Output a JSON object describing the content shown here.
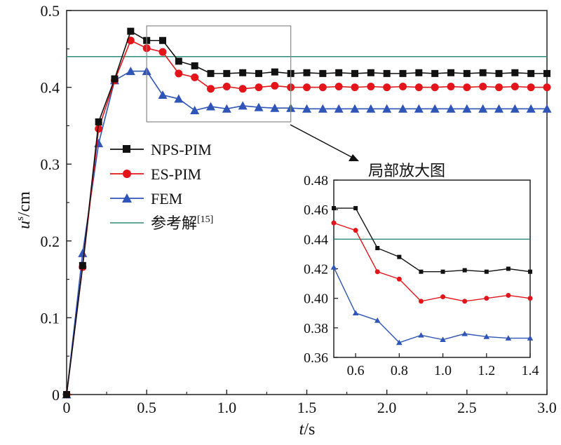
{
  "chart_data": {
    "type": "line",
    "xlabel": "t/s",
    "xlabel_parts": [
      "t",
      "/s"
    ],
    "ylabel": "us/cm",
    "ylabel_parts": [
      "u",
      "s",
      "/cm"
    ],
    "xlim": [
      0,
      3.0
    ],
    "ylim": [
      0,
      0.5
    ],
    "x_ticks": [
      "0",
      "0.5",
      "1.0",
      "1.5",
      "2.0",
      "2.5",
      "3.0"
    ],
    "y_ticks": [
      "0",
      "0.1",
      "0.2",
      "0.3",
      "0.4",
      "0.5"
    ],
    "legend_placement": "center-left",
    "colors": {
      "NPS-PIM": "#111111",
      "ES-PIM": "#e3151a",
      "FEM": "#2f55b8",
      "ref": "#2e8b7a"
    },
    "x": [
      0,
      0.1,
      0.2,
      0.3,
      0.4,
      0.5,
      0.6,
      0.7,
      0.8,
      0.9,
      1.0,
      1.1,
      1.2,
      1.3,
      1.4,
      1.5,
      1.6,
      1.7,
      1.8,
      1.9,
      2.0,
      2.1,
      2.2,
      2.3,
      2.4,
      2.5,
      2.6,
      2.7,
      2.8,
      2.9,
      3.0
    ],
    "series": [
      {
        "name": "NPS-PIM",
        "marker": "square",
        "values": [
          0,
          0.168,
          0.355,
          0.411,
          0.473,
          0.461,
          0.461,
          0.434,
          0.428,
          0.418,
          0.418,
          0.419,
          0.418,
          0.42,
          0.418,
          0.419,
          0.418,
          0.419,
          0.418,
          0.419,
          0.418,
          0.418,
          0.419,
          0.418,
          0.419,
          0.418,
          0.419,
          0.418,
          0.419,
          0.418,
          0.418
        ]
      },
      {
        "name": "ES-PIM",
        "marker": "circle",
        "values": [
          0,
          0.166,
          0.346,
          0.409,
          0.461,
          0.451,
          0.446,
          0.418,
          0.413,
          0.398,
          0.401,
          0.398,
          0.4,
          0.402,
          0.4,
          0.4,
          0.4,
          0.401,
          0.4,
          0.401,
          0.4,
          0.401,
          0.4,
          0.4,
          0.401,
          0.4,
          0.401,
          0.4,
          0.401,
          0.4,
          0.4
        ]
      },
      {
        "name": "FEM",
        "marker": "triangle",
        "values": [
          0,
          0.184,
          0.327,
          0.409,
          0.421,
          0.421,
          0.39,
          0.385,
          0.37,
          0.375,
          0.372,
          0.376,
          0.374,
          0.373,
          0.373,
          0.372,
          0.372,
          0.372,
          0.372,
          0.372,
          0.372,
          0.372,
          0.372,
          0.372,
          0.372,
          0.372,
          0.372,
          0.372,
          0.372,
          0.372,
          0.372
        ]
      }
    ],
    "reference": {
      "name": "参考解",
      "superscript": "[15]",
      "value": 0.44
    },
    "zoom_box": {
      "xlim": [
        0.5,
        1.4
      ],
      "ylim": [
        0.355,
        0.48
      ]
    },
    "inset": {
      "title": "局部放大图",
      "xlim": [
        0.5,
        1.4
      ],
      "ylim": [
        0.36,
        0.48
      ],
      "x_ticks": [
        "0.6",
        "0.8",
        "1.0",
        "1.2",
        "1.4"
      ],
      "y_ticks": [
        "0.36",
        "0.38",
        "0.40",
        "0.42",
        "0.44",
        "0.46",
        "0.48"
      ],
      "x": [
        0.5,
        0.6,
        0.7,
        0.8,
        0.9,
        1.0,
        1.1,
        1.2,
        1.3,
        1.4
      ],
      "series": [
        {
          "name": "NPS-PIM",
          "values": [
            0.461,
            0.461,
            0.434,
            0.428,
            0.418,
            0.418,
            0.419,
            0.418,
            0.42,
            0.418
          ]
        },
        {
          "name": "ES-PIM",
          "values": [
            0.451,
            0.446,
            0.418,
            0.413,
            0.398,
            0.401,
            0.398,
            0.4,
            0.402,
            0.4
          ]
        },
        {
          "name": "FEM",
          "values": [
            0.421,
            0.39,
            0.385,
            0.37,
            0.375,
            0.372,
            0.376,
            0.374,
            0.373,
            0.373
          ]
        }
      ],
      "reference": 0.44
    }
  }
}
